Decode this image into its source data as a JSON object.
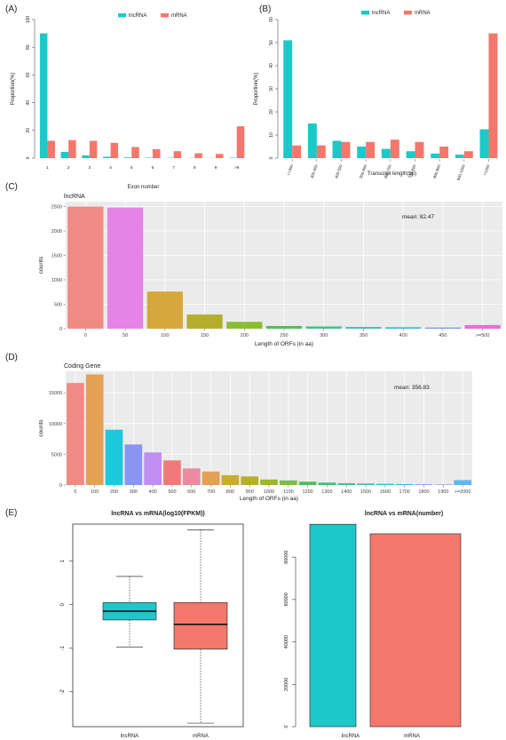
{
  "colors": {
    "lnc": "#1ec8c8",
    "mrna": "#f4776b",
    "ggbg": "#ebebeb",
    "grid": "#ffffff"
  },
  "chart_data": [
    {
      "panel": "(A)",
      "type": "bar",
      "legend": [
        "lncRNA",
        "mRNA"
      ],
      "xlabel": "Exon number",
      "ylabel": "Proportion(%)",
      "ylim": [
        0,
        100
      ],
      "yticks": [
        "0",
        "20",
        "40",
        "60",
        "80",
        "100"
      ],
      "categories": [
        "1",
        "2",
        "3",
        "4",
        "5",
        "6",
        "7",
        "8",
        "9",
        ">9"
      ],
      "series": [
        {
          "name": "lncRNA",
          "values": [
            90,
            4.5,
            2,
            1,
            0.5,
            0.3,
            0.2,
            0.1,
            0.1,
            0.3
          ]
        },
        {
          "name": "mRNA",
          "values": [
            12.5,
            13,
            12.5,
            11,
            8,
            6.5,
            5,
            3.5,
            3,
            23
          ]
        }
      ]
    },
    {
      "panel": "(B)",
      "type": "bar",
      "legend": [
        "lncRNA",
        "mRNA"
      ],
      "xlabel": "Transcript length(bp)",
      "ylabel": "Proportion(%)",
      "ylim": [
        0,
        60
      ],
      "yticks": [
        "0",
        "10",
        "20",
        "30",
        "40",
        "50",
        "60"
      ],
      "categories": [
        "<=300",
        "300-400",
        "400-500",
        "500-600",
        "600-700",
        "700-800",
        "800-900",
        "900-1000",
        ">1000"
      ],
      "series": [
        {
          "name": "lncRNA",
          "values": [
            51,
            15,
            7.5,
            5,
            4,
            3,
            2,
            1.5,
            12.5
          ]
        },
        {
          "name": "mRNA",
          "values": [
            5.5,
            5.5,
            7,
            7,
            8,
            7,
            5,
            3,
            54
          ]
        }
      ]
    },
    {
      "panel": "(C)",
      "type": "bar",
      "title": "lncRNA",
      "annotation": "mean: 82.47",
      "xlabel": "Length of ORFs (in aa)",
      "ylabel": "counts",
      "ylim": [
        0,
        2600
      ],
      "yticks": [
        0,
        500,
        1000,
        1500,
        2000,
        2500
      ],
      "categories": [
        "0",
        "50",
        "100",
        "150",
        "200",
        "250",
        "300",
        "350",
        "400",
        "450",
        ">=500"
      ],
      "values": [
        2500,
        2480,
        760,
        290,
        140,
        55,
        45,
        35,
        30,
        25,
        75
      ],
      "bar_colors": [
        "#f08a84",
        "#e583e6",
        "#d6a83c",
        "#b4ad2e",
        "#8bbd34",
        "#4cc05a",
        "#3ec28c",
        "#3ac2b4",
        "#3cb8de",
        "#7d9bf0",
        "#e86fd6"
      ]
    },
    {
      "panel": "(D)",
      "type": "bar",
      "title": "Coding Gene",
      "annotation": "mean: 356.83",
      "xlabel": "Length of ORFs (in aa)",
      "ylabel": "counts",
      "ylim": [
        0,
        18500
      ],
      "yticks": [
        0,
        5000,
        10000,
        15000
      ],
      "categories": [
        "0",
        "100",
        "200",
        "300",
        "400",
        "500",
        "600",
        "700",
        "800",
        "900",
        "1000",
        "1100",
        "1200",
        "1300",
        "1400",
        "1500",
        "1600",
        "1700",
        "1800",
        "1900",
        ">=2000"
      ],
      "values": [
        16600,
        18000,
        9000,
        6600,
        5300,
        4000,
        2700,
        2200,
        1600,
        1400,
        900,
        750,
        550,
        400,
        300,
        250,
        200,
        150,
        120,
        100,
        800
      ],
      "bar_colors": [
        "#f08a84",
        "#e4a055",
        "#1ec8dc",
        "#8a95f2",
        "#c08ef2",
        "#f07a7a",
        "#ee8aa0",
        "#e4a055",
        "#c8ad2e",
        "#b4b02e",
        "#9bb82e",
        "#7cc03a",
        "#4cc05a",
        "#3ec27a",
        "#3ec29a",
        "#3ac2b8",
        "#3cbcd6",
        "#3cb0e8",
        "#7d9bf0",
        "#a891f0",
        "#5cb8f0"
      ]
    },
    {
      "panel": "(E)",
      "type": "box",
      "title": "lncRNA vs mRNA(log10(FPKM))",
      "categories": [
        "lncRNA",
        "mRNA"
      ],
      "ylim": [
        -2.8,
        1.85
      ],
      "yticks": [
        "-2",
        "-1",
        "0",
        "1"
      ],
      "boxes": [
        {
          "name": "lncRNA",
          "min": -0.97,
          "q1": -0.35,
          "median": -0.15,
          "q3": 0.05,
          "max": 0.65
        },
        {
          "name": "mRNA",
          "min": -2.72,
          "q1": -1.02,
          "median": -0.45,
          "q3": 0.05,
          "max": 1.72
        }
      ]
    },
    {
      "panel": "(E)",
      "type": "bar",
      "title": "lncRNA vs mRNA(number)",
      "categories": [
        "lncRNA",
        "mRNA"
      ],
      "values": [
        95500,
        91000
      ],
      "ylim": [
        0,
        96000
      ],
      "yticks": [
        "0",
        "20000",
        "40000",
        "60000",
        "80000"
      ]
    }
  ]
}
